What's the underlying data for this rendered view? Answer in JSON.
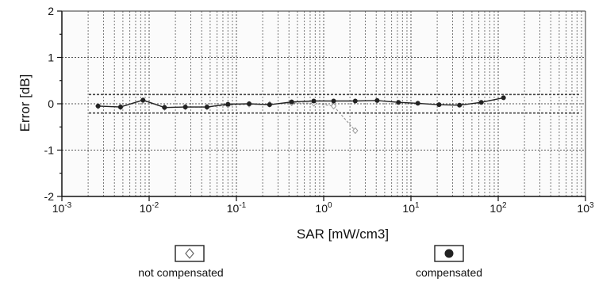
{
  "chart_data": {
    "type": "scatter",
    "xlabel": "SAR [mW/cm3]",
    "ylabel": "Error [dB]",
    "x_scale": "log",
    "xlim": [
      0.001,
      1000
    ],
    "ylim": [
      -2,
      2
    ],
    "x_ticks": [
      {
        "value": 0.001,
        "base": "10",
        "exp": "-3"
      },
      {
        "value": 0.01,
        "base": "10",
        "exp": "-2"
      },
      {
        "value": 0.1,
        "base": "10",
        "exp": "-1"
      },
      {
        "value": 1,
        "base": "10",
        "exp": "0"
      },
      {
        "value": 10,
        "base": "10",
        "exp": "1"
      },
      {
        "value": 100,
        "base": "10",
        "exp": "2"
      },
      {
        "value": 1000,
        "base": "10",
        "exp": "3"
      }
    ],
    "y_ticks": [
      {
        "value": 2,
        "label": "2"
      },
      {
        "value": 1,
        "label": "1"
      },
      {
        "value": 0,
        "label": "0"
      },
      {
        "value": -1,
        "label": "-1"
      },
      {
        "value": -2,
        "label": "-2"
      }
    ],
    "grid": true,
    "tolerance_band": [
      -0.2,
      0.2
    ],
    "series": [
      {
        "name": "not compensated",
        "color": "#999999",
        "marker": "open-diamond",
        "x": [
          0.0026,
          0.0047,
          0.0085,
          0.015,
          0.026,
          0.046,
          0.08,
          0.14,
          0.24,
          0.43,
          0.77,
          1.3,
          2.3
        ],
        "y": [
          -0.05,
          -0.07,
          0.07,
          -0.08,
          -0.07,
          -0.07,
          -0.03,
          -0.01,
          -0.01,
          0.02,
          0.01,
          -0.05,
          -0.58
        ]
      },
      {
        "name": "compensated",
        "color": "#222222",
        "marker": "filled-circle",
        "x": [
          0.0026,
          0.0047,
          0.0085,
          0.015,
          0.026,
          0.046,
          0.08,
          0.14,
          0.24,
          0.43,
          0.77,
          1.3,
          2.3,
          4.1,
          7.2,
          12,
          21,
          36,
          64,
          115
        ],
        "y": [
          -0.05,
          -0.07,
          0.08,
          -0.08,
          -0.07,
          -0.07,
          -0.01,
          0.0,
          -0.02,
          0.04,
          0.06,
          0.06,
          0.06,
          0.07,
          0.03,
          0.01,
          -0.02,
          -0.03,
          0.03,
          0.13
        ]
      }
    ],
    "legend": {
      "placement": "bottom",
      "entries": [
        {
          "label": "not compensated",
          "symbol": "open-diamond"
        },
        {
          "label": "compensated",
          "symbol": "filled-circle"
        }
      ]
    }
  }
}
